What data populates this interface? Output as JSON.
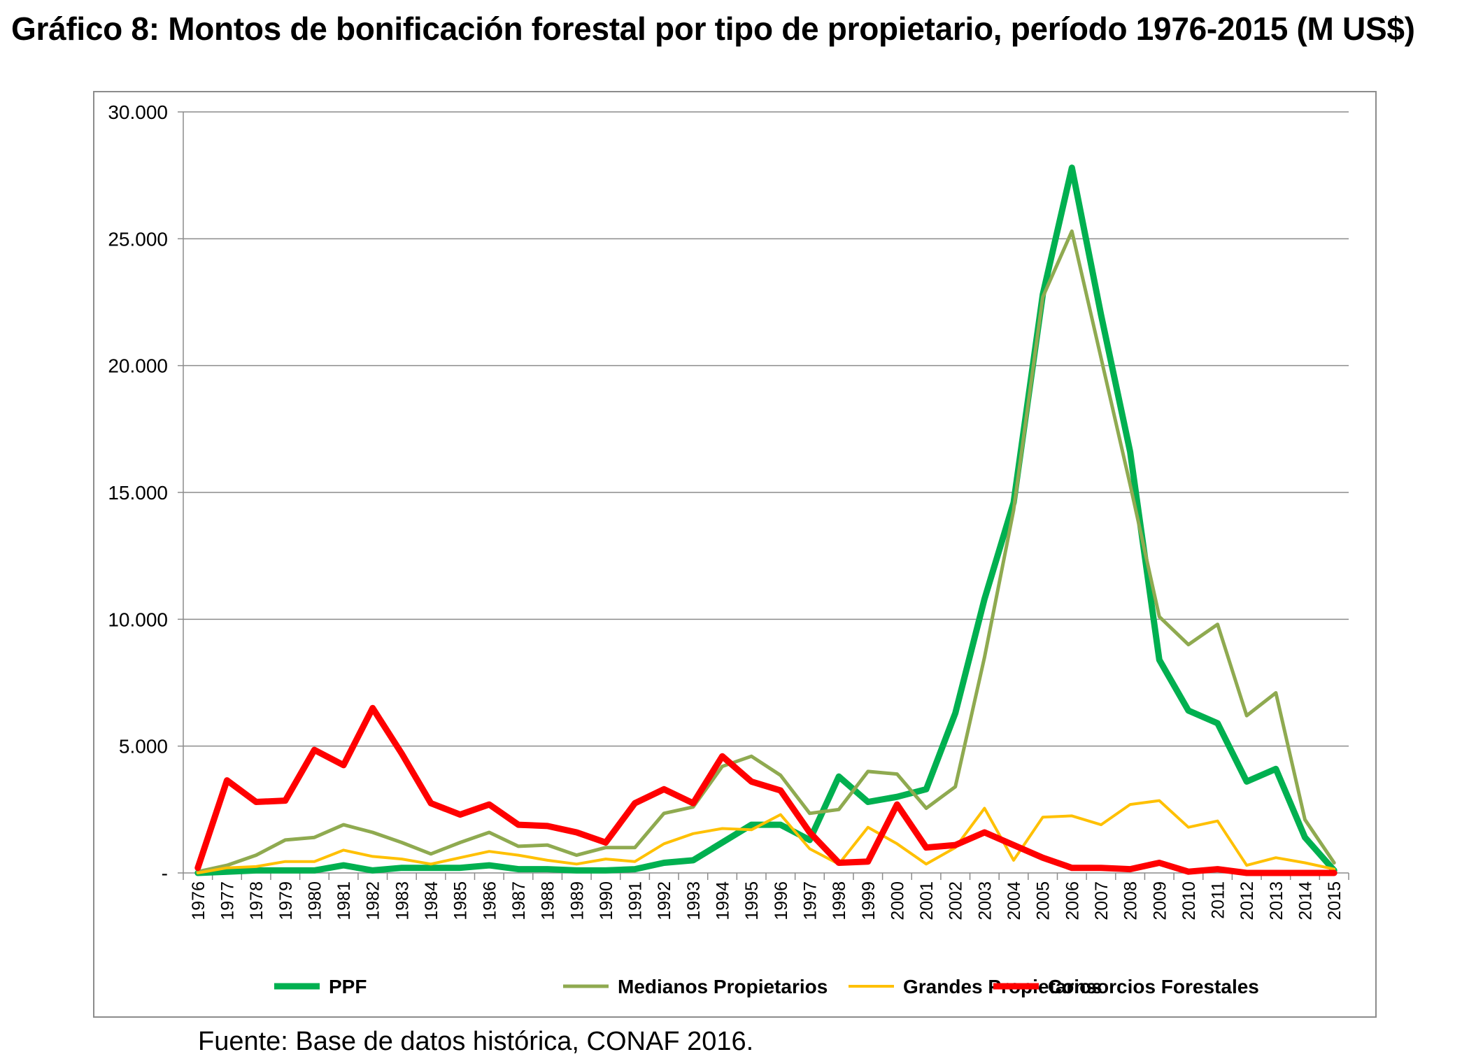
{
  "title": "Gráfico 8: Montos de bonificación forestal por tipo de propietario, período 1976-2015 (M US$)",
  "source": "Fuente: Base de datos histórica, CONAF 2016.",
  "chart_data": {
    "type": "line",
    "title": "Gráfico 8: Montos de bonificación forestal por tipo de propietario, período 1976-2015 (M US$)",
    "xlabel": "",
    "ylabel": "",
    "ylim": [
      0,
      30000
    ],
    "yticks": [
      0,
      5000,
      10000,
      15000,
      20000,
      25000,
      30000
    ],
    "ytick_labels": [
      "-",
      "5.000",
      "10.000",
      "15.000",
      "20.000",
      "25.000",
      "30.000"
    ],
    "grid": "horizontal",
    "legend_position": "bottom",
    "x": [
      "1976",
      "1977",
      "1978",
      "1979",
      "1980",
      "1981",
      "1982",
      "1983",
      "1984",
      "1985",
      "1986",
      "1987",
      "1988",
      "1989",
      "1990",
      "1991",
      "1992",
      "1993",
      "1994",
      "1995",
      "1996",
      "1997",
      "1998",
      "1999",
      "2000",
      "2001",
      "2002",
      "2003",
      "2004",
      "2005",
      "2006",
      "2007",
      "2008",
      "2009",
      "2010",
      "2011",
      "2012",
      "2013",
      "2014",
      "2015"
    ],
    "series": [
      {
        "name": "PPF",
        "color": "#00b050",
        "width": 9,
        "values": [
          0,
          50,
          100,
          100,
          100,
          300,
          100,
          200,
          200,
          200,
          300,
          150,
          150,
          100,
          100,
          150,
          400,
          500,
          1200,
          1900,
          1900,
          1300,
          3800,
          2800,
          3000,
          3300,
          6300,
          10800,
          14600,
          22800,
          27800,
          22000,
          16600,
          8400,
          6400,
          5900,
          3600,
          4100,
          1400,
          100
        ]
      },
      {
        "name": "Medianos Propietarios",
        "color": "#8faa50",
        "width": 5,
        "values": [
          50,
          300,
          700,
          1300,
          1400,
          1900,
          1600,
          1200,
          750,
          1200,
          1600,
          1050,
          1100,
          700,
          1000,
          1000,
          2350,
          2600,
          4200,
          4600,
          3850,
          2350,
          2500,
          4000,
          3900,
          2550,
          3400,
          8500,
          14300,
          22700,
          25300,
          20300,
          15300,
          10100,
          9000,
          9800,
          6200,
          7100,
          2100,
          400
        ]
      },
      {
        "name": "Grandes Propietarios",
        "color": "#ffc000",
        "width": 4,
        "values": [
          0,
          200,
          250,
          450,
          450,
          900,
          650,
          550,
          350,
          600,
          850,
          700,
          500,
          350,
          550,
          450,
          1150,
          1550,
          1750,
          1700,
          2300,
          950,
          350,
          1800,
          1150,
          350,
          1000,
          2550,
          500,
          2200,
          2250,
          1900,
          2700,
          2850,
          1800,
          2050,
          300,
          600,
          400,
          150
        ]
      },
      {
        "name": "Consorcios Forestales",
        "color": "#ff0000",
        "width": 9,
        "values": [
          200,
          3650,
          2800,
          2850,
          4850,
          4250,
          6500,
          4700,
          2750,
          2300,
          2700,
          1900,
          1850,
          1600,
          1200,
          2750,
          3300,
          2750,
          4600,
          3600,
          3250,
          1600,
          400,
          450,
          2700,
          1000,
          1100,
          1600,
          1100,
          600,
          200,
          200,
          150,
          400,
          50,
          150,
          0,
          0,
          0,
          0
        ]
      }
    ]
  }
}
